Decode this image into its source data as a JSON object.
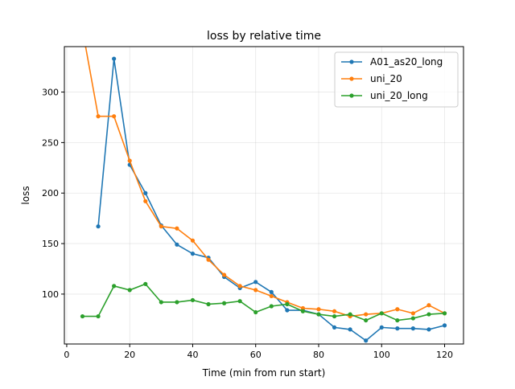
{
  "chart_data": {
    "type": "line",
    "title": "loss by relative time",
    "xlabel": "Time (min from run start)",
    "ylabel": "loss",
    "xlim": [
      -0.75,
      126
    ],
    "ylim": [
      50.6,
      345
    ],
    "xticks": [
      0,
      20,
      40,
      60,
      80,
      100,
      120
    ],
    "yticks": [
      100,
      150,
      200,
      250,
      300
    ],
    "grid": true,
    "legend": "top-right",
    "series": [
      {
        "name": "A01_as20_long",
        "color": "#1f77b4",
        "x": [
          10,
          15,
          20,
          25,
          30,
          35,
          40,
          45,
          50,
          55,
          60,
          65,
          70,
          75,
          80,
          85,
          90,
          95,
          100,
          105,
          110,
          115,
          120
        ],
        "y": [
          167,
          333,
          228,
          200,
          168,
          149,
          140,
          136,
          117,
          106,
          112,
          102,
          84,
          84,
          80,
          67,
          65,
          54,
          67,
          66,
          66,
          65,
          69
        ]
      },
      {
        "name": "uni_20",
        "color": "#ff7f0e",
        "x": [
          5,
          10,
          15,
          20,
          25,
          30,
          35,
          40,
          45,
          50,
          55,
          60,
          65,
          70,
          75,
          80,
          85,
          90,
          95,
          100,
          105,
          110,
          115,
          120
        ],
        "y": [
          362,
          276,
          276,
          232,
          192,
          167,
          165,
          153,
          134,
          119,
          108,
          104,
          98,
          92,
          86,
          85,
          83,
          78,
          80,
          81,
          85,
          81,
          89,
          81
        ]
      },
      {
        "name": "uni_20_long",
        "color": "#2ca02c",
        "x": [
          5,
          10,
          15,
          20,
          25,
          30,
          35,
          40,
          45,
          50,
          55,
          60,
          65,
          70,
          75,
          80,
          85,
          90,
          95,
          100,
          105,
          110,
          115,
          120
        ],
        "y": [
          78,
          78,
          108,
          104,
          110,
          92,
          92,
          94,
          90,
          91,
          93,
          82,
          88,
          90,
          83,
          80,
          78,
          80,
          74,
          81,
          74,
          76,
          80,
          81
        ]
      }
    ]
  }
}
